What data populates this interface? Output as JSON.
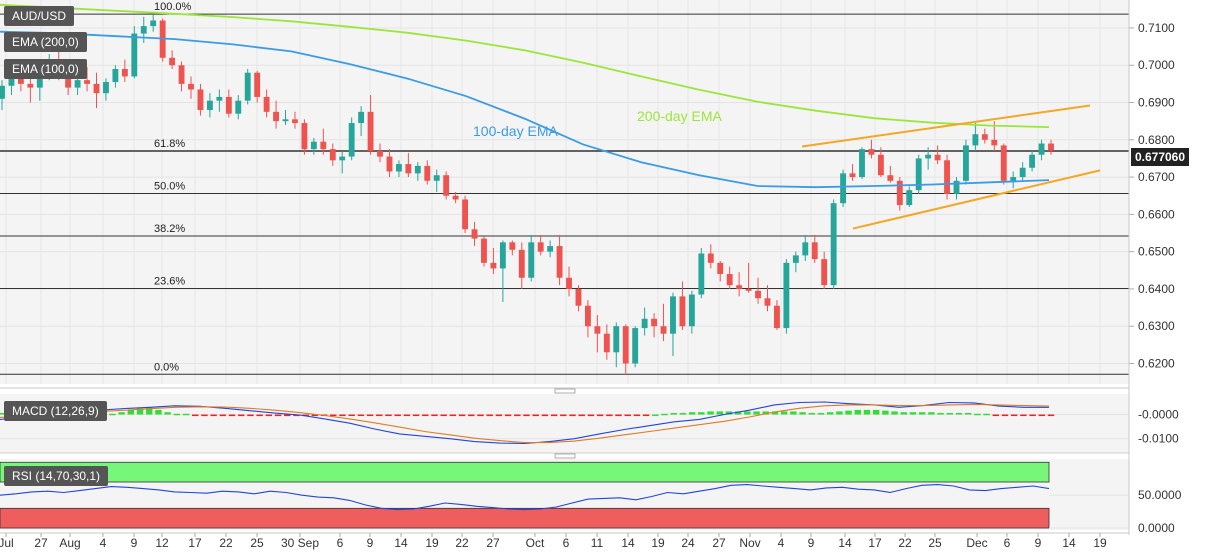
{
  "symbol": "AUD/USD",
  "indicators": {
    "ema200_label": "EMA (200,0)",
    "ema100_label": "EMA (100,0)",
    "macd_label": "MACD (12,26,9)",
    "rsi_label": "RSI (14,70,30,1)"
  },
  "last_price": "0.677060",
  "colors": {
    "up": "#26a69a",
    "down": "#ef5350",
    "ema200": "#9be63a",
    "ema100": "#3a9be6",
    "trendline": "#f5a623",
    "rsi_overbought": "#77f77a",
    "rsi_oversold": "#ef5e5e"
  },
  "chart_data": [
    {
      "type": "candlestick",
      "title": "AUD/USD",
      "ylim": [
        0.6145,
        0.7175
      ],
      "y_ticks": [
        "0.7100",
        "0.7000",
        "0.6900",
        "0.6800",
        "0.6700",
        "0.6600",
        "0.6500",
        "0.6400",
        "0.6300",
        "0.6200"
      ],
      "x_ticks": [
        "Jul",
        "27",
        "Aug",
        "4",
        "9",
        "12",
        "17",
        "22",
        "25",
        "30 Sep",
        "6",
        "9",
        "14",
        "19",
        "22",
        "27",
        "Oct",
        "6",
        "11",
        "14",
        "19",
        "24",
        "27",
        "Nov",
        "4",
        "9",
        "14",
        "17",
        "22",
        "25",
        "Dec",
        "6",
        "9",
        "14",
        "19"
      ],
      "fib_levels": [
        {
          "label": "100.0%",
          "value": 0.7137
        },
        {
          "label": "61.8%",
          "value": 0.677
        },
        {
          "label": "50.0%",
          "value": 0.6656
        },
        {
          "label": "38.2%",
          "value": 0.6542
        },
        {
          "label": "23.6%",
          "value": 0.6401
        },
        {
          "label": "0.0%",
          "value": 0.6171
        }
      ],
      "annotations": [
        "100-day EMA",
        "200-day EMA"
      ],
      "current_price": 0.67706,
      "ema200": [
        0.7162,
        0.7154,
        0.7146,
        0.7138,
        0.7129,
        0.7118,
        0.7103,
        0.7087,
        0.7066,
        0.704,
        0.7007,
        0.697,
        0.6934,
        0.6902,
        0.6878,
        0.6858,
        0.6846,
        0.6838,
        0.6834
      ],
      "ema100": [
        0.709,
        0.7086,
        0.7078,
        0.707,
        0.7056,
        0.7037,
        0.7003,
        0.6964,
        0.6917,
        0.6857,
        0.6788,
        0.674,
        0.6705,
        0.6676,
        0.6673,
        0.6676,
        0.668,
        0.6686,
        0.6692
      ],
      "trendline_upper": [
        [
          0.6782,
          0.6892
        ]
      ],
      "trendline_lower": [
        [
          0.6562,
          0.6718
        ]
      ],
      "candles": [
        {
          "o": 0.691,
          "h": 0.696,
          "l": 0.688,
          "c": 0.6945
        },
        {
          "o": 0.6945,
          "h": 0.6985,
          "l": 0.692,
          "c": 0.6965
        },
        {
          "o": 0.6965,
          "h": 0.701,
          "l": 0.693,
          "c": 0.695
        },
        {
          "o": 0.695,
          "h": 0.6975,
          "l": 0.69,
          "c": 0.694
        },
        {
          "o": 0.694,
          "h": 0.699,
          "l": 0.6905,
          "c": 0.6985
        },
        {
          "o": 0.6985,
          "h": 0.703,
          "l": 0.696,
          "c": 0.7005
        },
        {
          "o": 0.7005,
          "h": 0.705,
          "l": 0.696,
          "c": 0.6975
        },
        {
          "o": 0.6975,
          "h": 0.7,
          "l": 0.692,
          "c": 0.694
        },
        {
          "o": 0.694,
          "h": 0.6975,
          "l": 0.692,
          "c": 0.696
        },
        {
          "o": 0.696,
          "h": 0.6995,
          "l": 0.693,
          "c": 0.695
        },
        {
          "o": 0.695,
          "h": 0.698,
          "l": 0.6885,
          "c": 0.6925
        },
        {
          "o": 0.6925,
          "h": 0.6965,
          "l": 0.6905,
          "c": 0.6955
        },
        {
          "o": 0.6955,
          "h": 0.7,
          "l": 0.694,
          "c": 0.699
        },
        {
          "o": 0.699,
          "h": 0.7015,
          "l": 0.6955,
          "c": 0.697
        },
        {
          "o": 0.697,
          "h": 0.7105,
          "l": 0.6965,
          "c": 0.7085
        },
        {
          "o": 0.7085,
          "h": 0.713,
          "l": 0.706,
          "c": 0.7105
        },
        {
          "o": 0.7105,
          "h": 0.7137,
          "l": 0.709,
          "c": 0.712
        },
        {
          "o": 0.712,
          "h": 0.7125,
          "l": 0.701,
          "c": 0.702
        },
        {
          "o": 0.702,
          "h": 0.704,
          "l": 0.699,
          "c": 0.7
        },
        {
          "o": 0.7,
          "h": 0.701,
          "l": 0.693,
          "c": 0.695
        },
        {
          "o": 0.695,
          "h": 0.697,
          "l": 0.691,
          "c": 0.6935
        },
        {
          "o": 0.6935,
          "h": 0.695,
          "l": 0.6865,
          "c": 0.688
        },
        {
          "o": 0.688,
          "h": 0.6925,
          "l": 0.686,
          "c": 0.6905
        },
        {
          "o": 0.6905,
          "h": 0.6935,
          "l": 0.6875,
          "c": 0.6915
        },
        {
          "o": 0.6915,
          "h": 0.6935,
          "l": 0.686,
          "c": 0.687
        },
        {
          "o": 0.687,
          "h": 0.692,
          "l": 0.6855,
          "c": 0.6905
        },
        {
          "o": 0.6905,
          "h": 0.699,
          "l": 0.6895,
          "c": 0.698
        },
        {
          "o": 0.698,
          "h": 0.6985,
          "l": 0.69,
          "c": 0.6915
        },
        {
          "o": 0.6915,
          "h": 0.6935,
          "l": 0.686,
          "c": 0.6875
        },
        {
          "o": 0.6875,
          "h": 0.6905,
          "l": 0.683,
          "c": 0.685
        },
        {
          "o": 0.685,
          "h": 0.688,
          "l": 0.684,
          "c": 0.6855
        },
        {
          "o": 0.6855,
          "h": 0.6875,
          "l": 0.683,
          "c": 0.6845
        },
        {
          "o": 0.6845,
          "h": 0.6855,
          "l": 0.676,
          "c": 0.6775
        },
        {
          "o": 0.6775,
          "h": 0.6805,
          "l": 0.676,
          "c": 0.6795
        },
        {
          "o": 0.6795,
          "h": 0.683,
          "l": 0.676,
          "c": 0.6775
        },
        {
          "o": 0.6775,
          "h": 0.679,
          "l": 0.673,
          "c": 0.6745
        },
        {
          "o": 0.6745,
          "h": 0.677,
          "l": 0.671,
          "c": 0.6755
        },
        {
          "o": 0.6755,
          "h": 0.686,
          "l": 0.6745,
          "c": 0.6845
        },
        {
          "o": 0.6845,
          "h": 0.689,
          "l": 0.681,
          "c": 0.6875
        },
        {
          "o": 0.6875,
          "h": 0.692,
          "l": 0.676,
          "c": 0.677
        },
        {
          "o": 0.677,
          "h": 0.679,
          "l": 0.674,
          "c": 0.6755
        },
        {
          "o": 0.6755,
          "h": 0.6775,
          "l": 0.67,
          "c": 0.6715
        },
        {
          "o": 0.6715,
          "h": 0.6745,
          "l": 0.67,
          "c": 0.6735
        },
        {
          "o": 0.6735,
          "h": 0.6765,
          "l": 0.67,
          "c": 0.671
        },
        {
          "o": 0.671,
          "h": 0.674,
          "l": 0.669,
          "c": 0.673
        },
        {
          "o": 0.673,
          "h": 0.6745,
          "l": 0.668,
          "c": 0.669
        },
        {
          "o": 0.669,
          "h": 0.672,
          "l": 0.666,
          "c": 0.6705
        },
        {
          "o": 0.6705,
          "h": 0.6715,
          "l": 0.664,
          "c": 0.665
        },
        {
          "o": 0.665,
          "h": 0.666,
          "l": 0.663,
          "c": 0.664
        },
        {
          "o": 0.664,
          "h": 0.665,
          "l": 0.655,
          "c": 0.656
        },
        {
          "o": 0.656,
          "h": 0.658,
          "l": 0.6515,
          "c": 0.6535
        },
        {
          "o": 0.6535,
          "h": 0.654,
          "l": 0.646,
          "c": 0.647
        },
        {
          "o": 0.647,
          "h": 0.651,
          "l": 0.644,
          "c": 0.6455
        },
        {
          "o": 0.6455,
          "h": 0.653,
          "l": 0.6365,
          "c": 0.6525
        },
        {
          "o": 0.6525,
          "h": 0.653,
          "l": 0.649,
          "c": 0.6505
        },
        {
          "o": 0.6505,
          "h": 0.6525,
          "l": 0.64,
          "c": 0.643
        },
        {
          "o": 0.643,
          "h": 0.6545,
          "l": 0.642,
          "c": 0.6525
        },
        {
          "o": 0.6525,
          "h": 0.6545,
          "l": 0.649,
          "c": 0.65
        },
        {
          "o": 0.65,
          "h": 0.653,
          "l": 0.6485,
          "c": 0.6515
        },
        {
          "o": 0.6515,
          "h": 0.6545,
          "l": 0.641,
          "c": 0.643
        },
        {
          "o": 0.643,
          "h": 0.646,
          "l": 0.638,
          "c": 0.64
        },
        {
          "o": 0.64,
          "h": 0.641,
          "l": 0.634,
          "c": 0.6355
        },
        {
          "o": 0.6355,
          "h": 0.637,
          "l": 0.627,
          "c": 0.63
        },
        {
          "o": 0.63,
          "h": 0.633,
          "l": 0.623,
          "c": 0.628
        },
        {
          "o": 0.628,
          "h": 0.6305,
          "l": 0.621,
          "c": 0.623
        },
        {
          "o": 0.623,
          "h": 0.631,
          "l": 0.619,
          "c": 0.63
        },
        {
          "o": 0.63,
          "h": 0.6305,
          "l": 0.6171,
          "c": 0.62
        },
        {
          "o": 0.62,
          "h": 0.63,
          "l": 0.619,
          "c": 0.6295
        },
        {
          "o": 0.6295,
          "h": 0.635,
          "l": 0.6275,
          "c": 0.632
        },
        {
          "o": 0.632,
          "h": 0.6335,
          "l": 0.627,
          "c": 0.63
        },
        {
          "o": 0.63,
          "h": 0.636,
          "l": 0.626,
          "c": 0.628
        },
        {
          "o": 0.628,
          "h": 0.639,
          "l": 0.622,
          "c": 0.638
        },
        {
          "o": 0.638,
          "h": 0.642,
          "l": 0.629,
          "c": 0.63
        },
        {
          "o": 0.63,
          "h": 0.6395,
          "l": 0.628,
          "c": 0.6385
        },
        {
          "o": 0.6385,
          "h": 0.651,
          "l": 0.6375,
          "c": 0.6495
        },
        {
          "o": 0.6495,
          "h": 0.652,
          "l": 0.6455,
          "c": 0.647
        },
        {
          "o": 0.647,
          "h": 0.6475,
          "l": 0.642,
          "c": 0.644
        },
        {
          "o": 0.644,
          "h": 0.646,
          "l": 0.64,
          "c": 0.641
        },
        {
          "o": 0.641,
          "h": 0.6445,
          "l": 0.638,
          "c": 0.64
        },
        {
          "o": 0.64,
          "h": 0.647,
          "l": 0.639,
          "c": 0.6395
        },
        {
          "o": 0.6395,
          "h": 0.643,
          "l": 0.636,
          "c": 0.6375
        },
        {
          "o": 0.6375,
          "h": 0.641,
          "l": 0.634,
          "c": 0.6355
        },
        {
          "o": 0.6355,
          "h": 0.637,
          "l": 0.629,
          "c": 0.6295
        },
        {
          "o": 0.6295,
          "h": 0.648,
          "l": 0.628,
          "c": 0.647
        },
        {
          "o": 0.647,
          "h": 0.65,
          "l": 0.6445,
          "c": 0.649
        },
        {
          "o": 0.649,
          "h": 0.6545,
          "l": 0.6475,
          "c": 0.6525
        },
        {
          "o": 0.6525,
          "h": 0.6545,
          "l": 0.647,
          "c": 0.648
        },
        {
          "o": 0.648,
          "h": 0.65,
          "l": 0.64,
          "c": 0.641
        },
        {
          "o": 0.641,
          "h": 0.664,
          "l": 0.64,
          "c": 0.663
        },
        {
          "o": 0.663,
          "h": 0.672,
          "l": 0.662,
          "c": 0.671
        },
        {
          "o": 0.671,
          "h": 0.6735,
          "l": 0.669,
          "c": 0.67
        },
        {
          "o": 0.67,
          "h": 0.678,
          "l": 0.6695,
          "c": 0.6775
        },
        {
          "o": 0.6775,
          "h": 0.68,
          "l": 0.675,
          "c": 0.676
        },
        {
          "o": 0.676,
          "h": 0.678,
          "l": 0.67,
          "c": 0.6705
        },
        {
          "o": 0.6705,
          "h": 0.673,
          "l": 0.6685,
          "c": 0.669
        },
        {
          "o": 0.669,
          "h": 0.67,
          "l": 0.661,
          "c": 0.6625
        },
        {
          "o": 0.6625,
          "h": 0.6675,
          "l": 0.662,
          "c": 0.6665
        },
        {
          "o": 0.6665,
          "h": 0.676,
          "l": 0.6655,
          "c": 0.675
        },
        {
          "o": 0.675,
          "h": 0.678,
          "l": 0.672,
          "c": 0.676
        },
        {
          "o": 0.676,
          "h": 0.6785,
          "l": 0.6735,
          "c": 0.6745
        },
        {
          "o": 0.6745,
          "h": 0.676,
          "l": 0.664,
          "c": 0.6655
        },
        {
          "o": 0.6655,
          "h": 0.67,
          "l": 0.664,
          "c": 0.669
        },
        {
          "o": 0.669,
          "h": 0.68,
          "l": 0.668,
          "c": 0.6785
        },
        {
          "o": 0.6785,
          "h": 0.6845,
          "l": 0.677,
          "c": 0.6815
        },
        {
          "o": 0.6815,
          "h": 0.683,
          "l": 0.679,
          "c": 0.68
        },
        {
          "o": 0.68,
          "h": 0.685,
          "l": 0.677,
          "c": 0.6785
        },
        {
          "o": 0.6785,
          "h": 0.679,
          "l": 0.668,
          "c": 0.669
        },
        {
          "o": 0.669,
          "h": 0.6715,
          "l": 0.667,
          "c": 0.67
        },
        {
          "o": 0.67,
          "h": 0.674,
          "l": 0.669,
          "c": 0.6725
        },
        {
          "o": 0.6725,
          "h": 0.677,
          "l": 0.6715,
          "c": 0.676
        },
        {
          "o": 0.676,
          "h": 0.68,
          "l": 0.6745,
          "c": 0.679
        },
        {
          "o": 0.679,
          "h": 0.68,
          "l": 0.676,
          "c": 0.67706
        }
      ]
    },
    {
      "type": "macd",
      "title": "MACD (12,26,9)",
      "ylim": [
        -0.0155,
        0.0085
      ],
      "y_ticks": [
        "-0.0000",
        "-0.0100"
      ],
      "histogram": [
        0.0002,
        0.0002,
        0.0002,
        0.0002,
        0.0002,
        0.0002,
        0.0002,
        0.0002,
        0.0002,
        0.0002,
        0.0002,
        0.0001,
        0.0001,
        0.0003,
        0.0006,
        0.0008,
        0.0009,
        0.0006,
        0.0003,
        0.0001,
        0.0001,
        -0.0001,
        -0.0002,
        -0.0002,
        -0.0002,
        -0.0002,
        -0.0002,
        -0.0002,
        -0.0002,
        -0.0002,
        -0.0002,
        -0.0002,
        -0.0002,
        -0.0002,
        -0.0002,
        -0.0001,
        -0.0001,
        -0.0001,
        -0.0001,
        -0.0001,
        -0.0001,
        -0.0001,
        -0.0001,
        -0.0001,
        -0.0001,
        -0.0001,
        -0.0001,
        -0.0001,
        -0.0001,
        -0.0001,
        -0.0002,
        -0.0002,
        -0.0002,
        -0.0002,
        -0.0002,
        -0.0002,
        -0.0002,
        -0.0002,
        -0.0002,
        -0.0002,
        -0.0002,
        -0.0002,
        -0.0002,
        -0.0002,
        -0.0002,
        -0.0002,
        -0.0002,
        -0.0002,
        -0.0001,
        -0.0001,
        -0.0001,
        0.0,
        0.0001,
        0.0002,
        0.0002,
        0.0003,
        0.0003,
        0.0004,
        0.0004,
        0.0004,
        0.0004,
        0.0004,
        0.0004,
        0.0004,
        0.0004,
        0.0004,
        0.0004,
        0.0003,
        0.0002,
        0.0002,
        0.0003,
        0.0004,
        0.0005,
        0.0006,
        0.0006,
        0.0006,
        0.0005,
        0.0004,
        0.0003,
        0.0003,
        0.0003,
        0.0003,
        0.0002,
        0.0002,
        0.0002,
        0.0002,
        0.0001,
        0.0001,
        -0.0001,
        -0.0001,
        -0.0001,
        -0.0001,
        -0.0001,
        -0.0001,
        -0.0001
      ],
      "macd_line": [
        -0.002,
        -0.001,
        0.0002,
        0.0012,
        0.0018,
        0.0025,
        0.003,
        0.0036,
        0.0034,
        0.0026,
        0.0016,
        0.0006,
        -0.0002,
        -0.0018,
        -0.0036,
        -0.006,
        -0.008,
        -0.009,
        -0.01,
        -0.0112,
        -0.0118,
        -0.012,
        -0.0112,
        -0.01,
        -0.008,
        -0.0062,
        -0.0046,
        -0.003,
        -0.002,
        0.0,
        0.0018,
        0.004,
        0.005,
        0.0052,
        0.0045,
        0.004,
        0.003,
        0.0038,
        0.005,
        0.0048,
        0.0035,
        0.003,
        0.003
      ],
      "signal_line": [
        -0.0012,
        -0.0006,
        0.0,
        0.0006,
        0.0012,
        0.0018,
        0.0024,
        0.003,
        0.0032,
        0.0031,
        0.0026,
        0.0018,
        0.0008,
        -0.0004,
        -0.0018,
        -0.0034,
        -0.0052,
        -0.007,
        -0.0084,
        -0.0098,
        -0.0108,
        -0.0116,
        -0.0116,
        -0.011,
        -0.0098,
        -0.0084,
        -0.007,
        -0.0056,
        -0.0042,
        -0.0028,
        -0.001,
        0.001,
        0.0026,
        0.0036,
        0.004,
        0.004,
        0.0037,
        0.0037,
        0.004,
        0.0042,
        0.004,
        0.0037,
        0.0035
      ]
    },
    {
      "type": "rsi",
      "title": "RSI (14,70,30,1)",
      "ylim": [
        -3,
        105
      ],
      "y_ticks": [
        "50.0000",
        "0.0000"
      ],
      "overbought": 70,
      "oversold": 30,
      "values": [
        50,
        52,
        55,
        56,
        54,
        57,
        60,
        63,
        62,
        60,
        58,
        55,
        54,
        53,
        56,
        55,
        52,
        56,
        54,
        50,
        47,
        46,
        42,
        35,
        30,
        28,
        29,
        33,
        38,
        36,
        33,
        31,
        29,
        28,
        29,
        32,
        38,
        44,
        45,
        46,
        43,
        48,
        54,
        52,
        56,
        60,
        65,
        66,
        64,
        62,
        60,
        58,
        61,
        62,
        59,
        58,
        54,
        60,
        65,
        66,
        64,
        58,
        57,
        60,
        62,
        64,
        60
      ]
    }
  ]
}
